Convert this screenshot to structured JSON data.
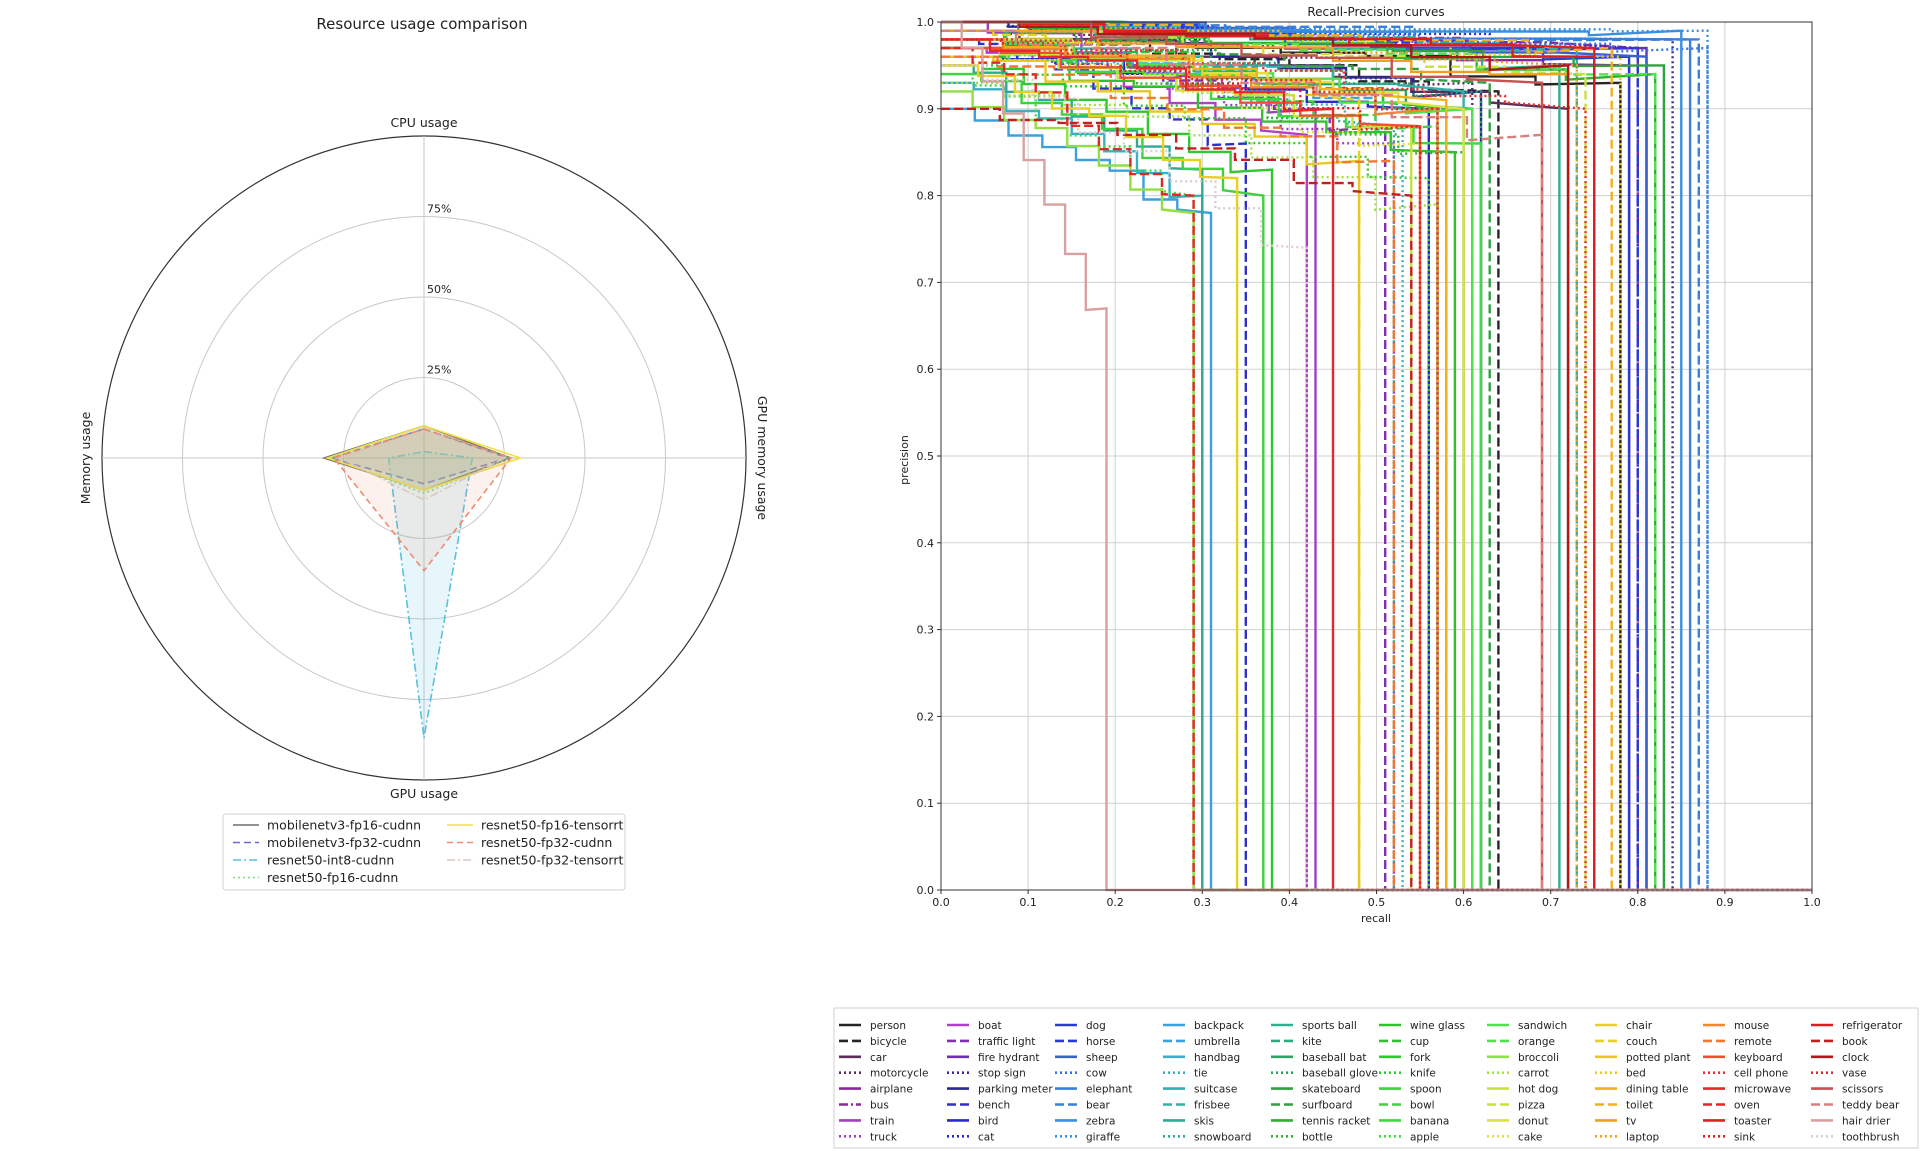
{
  "chart_data": [
    {
      "type": "radar",
      "title": "Resource usage comparison",
      "axes": [
        "CPU usage",
        "GPU memory usage",
        "GPU usage",
        "Memory usage"
      ],
      "rings": [
        "25%",
        "50%",
        "75%"
      ],
      "ring_values": [
        25,
        50,
        75
      ],
      "max": 100,
      "legend_position": "bottom-center",
      "series": [
        {
          "name": "mobilenetv3-fp16-cudnn",
          "values": [
            10,
            27,
            10,
            31
          ],
          "color": "#6e6e6e",
          "dash": "",
          "fill": 0.18
        },
        {
          "name": "mobilenetv3-fp32-cudnn",
          "values": [
            9,
            26,
            8,
            29
          ],
          "color": "#6b6bd6",
          "dash": "7 4",
          "fill": 0.1
        },
        {
          "name": "resnet50-int8-cudnn",
          "values": [
            2,
            15,
            87,
            11
          ],
          "color": "#5bc0de",
          "dash": "8 3 2 3",
          "fill": 0.15
        },
        {
          "name": "resnet50-fp16-cudnn",
          "values": [
            9,
            27,
            11,
            29
          ],
          "color": "#7ddc7d",
          "dash": "2 3",
          "fill": 0.12
        },
        {
          "name": "resnet50-fp16-tensorrt",
          "values": [
            10,
            30,
            10,
            30
          ],
          "color": "#f0e04a",
          "dash": "",
          "fill": 0.15
        },
        {
          "name": "resnet50-fp32-cudnn",
          "values": [
            9,
            27,
            35,
            28
          ],
          "color": "#f08a70",
          "dash": "6 4",
          "fill": 0.12
        },
        {
          "name": "resnet50-fp32-tensorrt",
          "values": [
            8,
            25,
            13,
            26
          ],
          "color": "#d8c8c0",
          "dash": "8 3 2 3",
          "fill": 0.06
        }
      ]
    },
    {
      "type": "line",
      "title": "Recall-Precision curves",
      "xlabel": "recall",
      "ylabel": "precision",
      "xlim": [
        0.0,
        1.0
      ],
      "ylim": [
        0.0,
        1.0
      ],
      "xticks": [
        "0.0",
        "0.1",
        "0.2",
        "0.3",
        "0.4",
        "0.5",
        "0.6",
        "0.7",
        "0.8",
        "0.9",
        "1.0"
      ],
      "yticks": [
        "0.0",
        "0.1",
        "0.2",
        "0.3",
        "0.4",
        "0.5",
        "0.6",
        "0.7",
        "0.8",
        "0.9",
        "1.0"
      ],
      "grid": true,
      "legend_position": "below",
      "series": [
        {
          "name": "person",
          "color": "#262626",
          "dash": "",
          "p0": 1.0,
          "p1": 0.93,
          "drop": 0.78
        },
        {
          "name": "bicycle",
          "color": "#262626",
          "dash": "dash",
          "p0": 0.99,
          "p1": 0.92,
          "drop": 0.64
        },
        {
          "name": "car",
          "color": "#5a2d5a",
          "dash": "",
          "p0": 0.99,
          "p1": 0.9,
          "drop": 0.72
        },
        {
          "name": "motorcycle",
          "color": "#5a2d5a",
          "dash": "dot",
          "p0": 1.0,
          "p1": 0.93,
          "drop": 0.61
        },
        {
          "name": "airplane",
          "color": "#8a2a9a",
          "dash": "",
          "p0": 1.0,
          "p1": 0.95,
          "drop": 0.79
        },
        {
          "name": "bus",
          "color": "#8a2a9a",
          "dash": "dashdot",
          "p0": 1.0,
          "p1": 0.97,
          "drop": 0.8
        },
        {
          "name": "train",
          "color": "#a040c0",
          "dash": "",
          "p0": 1.0,
          "p1": 0.9,
          "drop": 0.43
        },
        {
          "name": "truck",
          "color": "#a040c0",
          "dash": "dot",
          "p0": 0.98,
          "p1": 0.86,
          "drop": 0.52
        },
        {
          "name": "boat",
          "color": "#b040c8",
          "dash": "",
          "p0": 0.97,
          "p1": 0.87,
          "drop": 0.42
        },
        {
          "name": "traffic light",
          "color": "#8030b0",
          "dash": "dash",
          "p0": 0.97,
          "p1": 0.88,
          "drop": 0.51
        },
        {
          "name": "fire hydrant",
          "color": "#6a30b0",
          "dash": "",
          "p0": 1.0,
          "p1": 0.97,
          "drop": 0.81
        },
        {
          "name": "stop sign",
          "color": "#3a2aa0",
          "dash": "dot",
          "p0": 1.0,
          "p1": 0.98,
          "drop": 0.84
        },
        {
          "name": "parking meter",
          "color": "#2a2a90",
          "dash": "",
          "p0": 1.0,
          "p1": 0.92,
          "drop": 0.62
        },
        {
          "name": "bench",
          "color": "#3030c8",
          "dash": "dash",
          "p0": 0.98,
          "p1": 0.86,
          "drop": 0.35
        },
        {
          "name": "bird",
          "color": "#2a2ac8",
          "dash": "",
          "p0": 0.97,
          "p1": 0.9,
          "drop": 0.56
        },
        {
          "name": "cat",
          "color": "#2a2ac8",
          "dash": "dot",
          "p0": 1.0,
          "p1": 0.97,
          "drop": 0.8
        },
        {
          "name": "dog",
          "color": "#2a3ad8",
          "dash": "",
          "p0": 1.0,
          "p1": 0.96,
          "drop": 0.79
        },
        {
          "name": "horse",
          "color": "#2a3ad8",
          "dash": "dash",
          "p0": 1.0,
          "p1": 0.97,
          "drop": 0.8
        },
        {
          "name": "sheep",
          "color": "#3a60d0",
          "dash": "",
          "p0": 1.0,
          "p1": 0.96,
          "drop": 0.81
        },
        {
          "name": "cow",
          "color": "#3a70e0",
          "dash": "dot",
          "p0": 1.0,
          "p1": 0.97,
          "drop": 0.88
        },
        {
          "name": "elephant",
          "color": "#3a80d8",
          "dash": "",
          "p0": 1.0,
          "p1": 0.98,
          "drop": 0.86
        },
        {
          "name": "bear",
          "color": "#3a80d8",
          "dash": "dash",
          "p0": 1.0,
          "p1": 0.98,
          "drop": 0.87
        },
        {
          "name": "zebra",
          "color": "#3a90e0",
          "dash": "",
          "p0": 1.0,
          "p1": 0.99,
          "drop": 0.85
        },
        {
          "name": "giraffe",
          "color": "#3a90e0",
          "dash": "dot",
          "p0": 1.0,
          "p1": 0.99,
          "drop": 0.88
        },
        {
          "name": "backpack",
          "color": "#3aa0e0",
          "dash": "",
          "p0": 0.9,
          "p1": 0.78,
          "drop": 0.31
        },
        {
          "name": "umbrella",
          "color": "#3aa0e0",
          "dash": "dash",
          "p0": 0.98,
          "p1": 0.9,
          "drop": 0.57
        },
        {
          "name": "handbag",
          "color": "#3ab0c8",
          "dash": "",
          "p0": 0.93,
          "p1": 0.8,
          "drop": 0.3
        },
        {
          "name": "tie",
          "color": "#3ab0b8",
          "dash": "dot",
          "p0": 0.98,
          "p1": 0.88,
          "drop": 0.53
        },
        {
          "name": "suitcase",
          "color": "#30b0b0",
          "dash": "",
          "p0": 0.99,
          "p1": 0.92,
          "drop": 0.6
        },
        {
          "name": "frisbee",
          "color": "#30b0a8",
          "dash": "dash",
          "p0": 1.0,
          "p1": 0.97,
          "drop": 0.73
        },
        {
          "name": "skis",
          "color": "#30a898",
          "dash": "",
          "p0": 0.95,
          "p1": 0.83,
          "drop": 0.3
        },
        {
          "name": "snowboard",
          "color": "#30a898",
          "dash": "dot",
          "p0": 0.97,
          "p1": 0.88,
          "drop": 0.52
        },
        {
          "name": "sports ball",
          "color": "#30b090",
          "dash": "",
          "p0": 1.0,
          "p1": 0.95,
          "drop": 0.71
        },
        {
          "name": "kite",
          "color": "#30a880",
          "dash": "dash",
          "p0": 0.98,
          "p1": 0.9,
          "drop": 0.58
        },
        {
          "name": "baseball bat",
          "color": "#30a060",
          "dash": "",
          "p0": 0.98,
          "p1": 0.9,
          "drop": 0.61
        },
        {
          "name": "baseball glove",
          "color": "#30a060",
          "dash": "dot",
          "p0": 0.99,
          "p1": 0.92,
          "drop": 0.62
        },
        {
          "name": "skateboard",
          "color": "#30a040",
          "dash": "",
          "p0": 1.0,
          "p1": 0.95,
          "drop": 0.83
        },
        {
          "name": "surfboard",
          "color": "#30a040",
          "dash": "dash",
          "p0": 0.99,
          "p1": 0.93,
          "drop": 0.63
        },
        {
          "name": "tennis racket",
          "color": "#30b030",
          "dash": "",
          "p0": 1.0,
          "p1": 0.94,
          "drop": 0.82
        },
        {
          "name": "bottle",
          "color": "#30b030",
          "dash": "dot",
          "p0": 0.97,
          "p1": 0.85,
          "drop": 0.6
        },
        {
          "name": "wine glass",
          "color": "#30c030",
          "dash": "",
          "p0": 0.96,
          "p1": 0.85,
          "drop": 0.59
        },
        {
          "name": "cup",
          "color": "#30c030",
          "dash": "dash",
          "p0": 0.99,
          "p1": 0.9,
          "drop": 0.58
        },
        {
          "name": "fork",
          "color": "#30c830",
          "dash": "",
          "p0": 0.96,
          "p1": 0.83,
          "drop": 0.38
        },
        {
          "name": "knife",
          "color": "#30c830",
          "dash": "dot",
          "p0": 0.95,
          "p1": 0.82,
          "drop": 0.56
        },
        {
          "name": "spoon",
          "color": "#40d040",
          "dash": "",
          "p0": 0.94,
          "p1": 0.8,
          "drop": 0.37
        },
        {
          "name": "bowl",
          "color": "#40d040",
          "dash": "dash",
          "p0": 0.98,
          "p1": 0.88,
          "drop": 0.57
        },
        {
          "name": "banana",
          "color": "#40d840",
          "dash": "",
          "p0": 0.97,
          "p1": 0.86,
          "drop": 0.62
        },
        {
          "name": "apple",
          "color": "#40d840",
          "dash": "dot",
          "p0": 0.94,
          "p1": 0.8,
          "drop": 0.29
        },
        {
          "name": "sandwich",
          "color": "#50e050",
          "dash": "",
          "p0": 0.98,
          "p1": 0.9,
          "drop": 0.61
        },
        {
          "name": "orange",
          "color": "#50e050",
          "dash": "dash",
          "p0": 0.99,
          "p1": 0.94,
          "drop": 0.82
        },
        {
          "name": "broccoli",
          "color": "#90e040",
          "dash": "",
          "p0": 0.92,
          "p1": 0.78,
          "drop": 0.29
        },
        {
          "name": "carrot",
          "color": "#a0e040",
          "dash": "dot",
          "p0": 0.93,
          "p1": 0.79,
          "drop": 0.57
        },
        {
          "name": "hot dog",
          "color": "#c8e040",
          "dash": "",
          "p0": 0.97,
          "p1": 0.88,
          "drop": 0.54
        },
        {
          "name": "pizza",
          "color": "#c8e040",
          "dash": "dash",
          "p0": 0.99,
          "p1": 0.94,
          "drop": 0.74
        },
        {
          "name": "donut",
          "color": "#e0e040",
          "dash": "",
          "p0": 0.98,
          "p1": 0.9,
          "drop": 0.6
        },
        {
          "name": "cake",
          "color": "#e0e040",
          "dash": "dot",
          "p0": 0.97,
          "p1": 0.86,
          "drop": 0.55
        },
        {
          "name": "chair",
          "color": "#e8d020",
          "dash": "",
          "p0": 0.95,
          "p1": 0.82,
          "drop": 0.34
        },
        {
          "name": "couch",
          "color": "#e8d020",
          "dash": "dash",
          "p0": 0.99,
          "p1": 0.91,
          "drop": 0.48
        },
        {
          "name": "potted plant",
          "color": "#e8c820",
          "dash": "",
          "p0": 0.96,
          "p1": 0.84,
          "drop": 0.48
        },
        {
          "name": "bed",
          "color": "#e8c820",
          "dash": "dot",
          "p0": 1.0,
          "p1": 0.96,
          "drop": 0.78
        },
        {
          "name": "dining table",
          "color": "#f0b020",
          "dash": "",
          "p0": 0.98,
          "p1": 0.91,
          "drop": 0.58
        },
        {
          "name": "toilet",
          "color": "#f0b020",
          "dash": "dash",
          "p0": 1.0,
          "p1": 0.97,
          "drop": 0.77
        },
        {
          "name": "tv",
          "color": "#f0a020",
          "dash": "",
          "p0": 0.99,
          "p1": 0.94,
          "drop": 0.72
        },
        {
          "name": "laptop",
          "color": "#f0a020",
          "dash": "dot",
          "p0": 1.0,
          "p1": 0.95,
          "drop": 0.73
        },
        {
          "name": "mouse",
          "color": "#f08830",
          "dash": "",
          "p0": 0.98,
          "p1": 0.9,
          "drop": 0.57
        },
        {
          "name": "remote",
          "color": "#f07830",
          "dash": "dash",
          "p0": 0.96,
          "p1": 0.84,
          "drop": 0.52
        },
        {
          "name": "keyboard",
          "color": "#f05030",
          "dash": "",
          "p0": 0.97,
          "p1": 0.88,
          "drop": 0.55
        },
        {
          "name": "cell phone",
          "color": "#e83030",
          "dash": "dot",
          "p0": 0.98,
          "p1": 0.9,
          "drop": 0.74
        },
        {
          "name": "microwave",
          "color": "#e82828",
          "dash": "",
          "p0": 0.98,
          "p1": 0.9,
          "drop": 0.45
        },
        {
          "name": "oven",
          "color": "#e02828",
          "dash": "dash",
          "p0": 0.97,
          "p1": 0.8,
          "drop": 0.29
        },
        {
          "name": "toaster",
          "color": "#e02020",
          "dash": "",
          "p0": 1.0,
          "p1": 0.97,
          "drop": 0.75
        },
        {
          "name": "sink",
          "color": "#e02020",
          "dash": "dot",
          "p0": 0.98,
          "p1": 0.88,
          "drop": 0.55
        },
        {
          "name": "refrigerator",
          "color": "#d82020",
          "dash": "",
          "p0": 1.0,
          "p1": 0.96,
          "drop": 0.75
        },
        {
          "name": "book",
          "color": "#c02020",
          "dash": "dash",
          "p0": 0.9,
          "p1": 0.8,
          "drop": 0.54
        },
        {
          "name": "clock",
          "color": "#b01818",
          "dash": "",
          "p0": 1.0,
          "p1": 0.95,
          "drop": 0.72
        },
        {
          "name": "vase",
          "color": "#d03030",
          "dash": "dot",
          "p0": 0.98,
          "p1": 0.9,
          "drop": 0.57
        },
        {
          "name": "scissors",
          "color": "#c85050",
          "dash": "",
          "p0": 1.0,
          "p1": 0.93,
          "drop": 0.69
        },
        {
          "name": "teddy bear",
          "color": "#d88080",
          "dash": "dash",
          "p0": 0.99,
          "p1": 0.87,
          "drop": 0.69
        },
        {
          "name": "hair drier",
          "color": "#d8a0a0",
          "dash": "",
          "p0": 1.0,
          "p1": 0.67,
          "drop": 0.19
        },
        {
          "name": "toothbrush",
          "color": "#dcccd8",
          "dash": "dot",
          "p0": 0.95,
          "p1": 0.74,
          "drop": 0.42
        }
      ]
    }
  ]
}
